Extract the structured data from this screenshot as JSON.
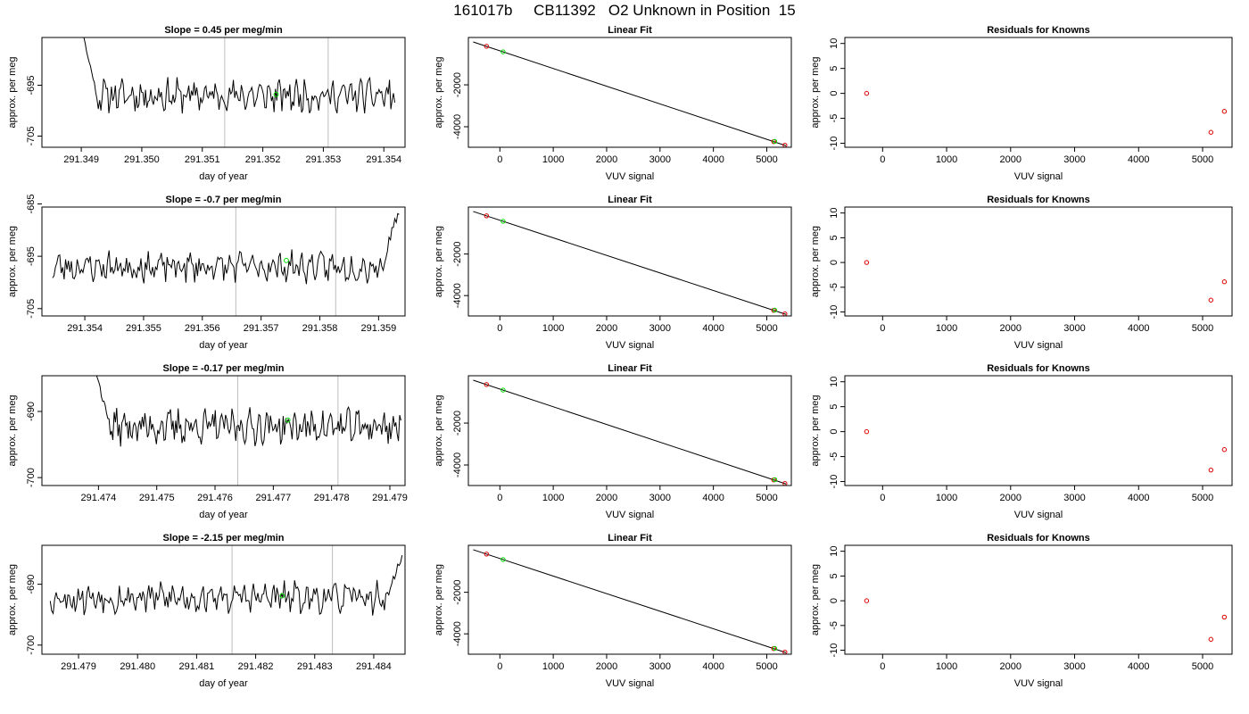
{
  "title": "161017b     CB11392   O2 Unknown in Position  15",
  "colors": {
    "axis": "#000000",
    "series": "#000000",
    "vline": "#bebebe",
    "green": "#00dd00",
    "red": "#dd0000"
  },
  "chart_data": [
    {
      "type": "line",
      "row": 0,
      "col": 0,
      "title": "Slope =  0.45  per meg/min",
      "xlabel": "day of year",
      "ylabel": "approx. per meg",
      "xlim": [
        291.34835,
        291.35435
      ],
      "ylim": [
        -707.2,
        -685.6
      ],
      "xticks": [
        291.349,
        291.35,
        291.351,
        291.352,
        291.353,
        291.354
      ],
      "xtick_labels": [
        "291.349",
        "291.350",
        "291.351",
        "291.352",
        "291.353",
        "291.354"
      ],
      "yticks": [
        -705,
        -695
      ],
      "ytick_labels": [
        "-705",
        "-695"
      ],
      "vlines": [
        291.35137,
        291.35308
      ],
      "x_start": 291.349,
      "x_end": 291.35418,
      "lead": [
        -684,
        -688,
        -692.5
      ],
      "trail": [],
      "base": -697,
      "amp": 2.2,
      "seed": 11,
      "marker": {
        "x": 291.35222,
        "y": -696.8
      }
    },
    {
      "type": "line",
      "row": 1,
      "col": 0,
      "title": "Slope =  -0.7  per meg/min",
      "xlabel": "day of year",
      "ylabel": "approx. per meg",
      "xlim": [
        291.35327,
        291.35945
      ],
      "ylim": [
        -706.4,
        -685.6
      ],
      "xticks": [
        291.354,
        291.355,
        291.356,
        291.357,
        291.358,
        291.359
      ],
      "xtick_labels": [
        "291.354",
        "291.355",
        "291.356",
        "291.357",
        "291.358",
        "291.359"
      ],
      "yticks": [
        -705,
        -695,
        -685
      ],
      "ytick_labels": [
        "-705",
        "-695",
        "-685"
      ],
      "vlines": [
        291.35657,
        291.35827
      ],
      "x_start": 291.35345,
      "x_end": 291.35935,
      "lead": [],
      "trail": [
        -692,
        -688.5,
        -685.8
      ],
      "base": -697,
      "amp": 2.0,
      "seed": 23,
      "marker": {
        "x": 291.35743,
        "y": -695.8
      }
    },
    {
      "type": "line",
      "row": 2,
      "col": 0,
      "title": "Slope =  -0.17  per meg/min",
      "xlabel": "day of year",
      "ylabel": "approx. per meg",
      "xlim": [
        291.47303,
        291.47926
      ],
      "ylim": [
        -701.2,
        -684.6
      ],
      "xticks": [
        291.474,
        291.475,
        291.476,
        291.477,
        291.478,
        291.479
      ],
      "xtick_labels": [
        "291.474",
        "291.475",
        "291.476",
        "291.477",
        "291.478",
        "291.479"
      ],
      "yticks": [
        -700,
        -690
      ],
      "ytick_labels": [
        "-700",
        "-690"
      ],
      "vlines": [
        291.47639,
        291.47811
      ],
      "x_start": 291.47394,
      "x_end": 291.47919,
      "lead": [
        -683,
        -686.5,
        -689.5
      ],
      "trail": [],
      "base": -692.3,
      "amp": 1.8,
      "seed": 37,
      "marker": {
        "x": 291.47725,
        "y": -691.3
      }
    },
    {
      "type": "line",
      "row": 3,
      "col": 0,
      "title": "Slope =  -2.15  per meg/min",
      "xlabel": "day of year",
      "ylabel": "approx. per meg",
      "xlim": [
        291.47838,
        291.48453
      ],
      "ylim": [
        -701.5,
        -683.6
      ],
      "xticks": [
        291.479,
        291.48,
        291.481,
        291.482,
        291.483,
        291.484
      ],
      "xtick_labels": [
        "291.479",
        "291.480",
        "291.481",
        "291.482",
        "291.483",
        "291.484"
      ],
      "yticks": [
        -700,
        -690
      ],
      "ytick_labels": [
        "-700",
        "-690"
      ],
      "vlines": [
        291.4816,
        291.4833
      ],
      "x_start": 291.47852,
      "x_end": 291.48448,
      "lead": [],
      "trail": [
        -690,
        -687,
        -684.5
      ],
      "base": -692.2,
      "amp": 1.8,
      "seed": 53,
      "marker": {
        "x": 291.48245,
        "y": -691.9
      }
    },
    {
      "type": "line",
      "row": 0,
      "col": 1,
      "title": "Linear Fit",
      "xlabel": "VUV signal",
      "ylabel": "approx. per meg",
      "xlim": [
        -590,
        5460
      ],
      "ylim": [
        -4980,
        260
      ],
      "xticks": [
        0,
        1000,
        2000,
        3000,
        4000,
        5000
      ],
      "xtick_labels": [
        "0",
        "1000",
        "2000",
        "3000",
        "4000",
        "5000"
      ],
      "yticks": [
        -4000,
        -2000
      ],
      "ytick_labels": [
        "-4000",
        "-2000"
      ],
      "line": {
        "x": [
          -500,
          5360
        ],
        "y": [
          48,
          -4905
        ]
      },
      "points_red": {
        "x": [
          -250,
          5130,
          5340
        ],
        "y": [
          -160,
          -4710,
          -4880
        ]
      },
      "points_green": {
        "x": [
          60,
          5150
        ],
        "y": [
          -425,
          -4700
        ]
      }
    },
    {
      "type": "line",
      "row": 1,
      "col": 1,
      "title": "Linear Fit",
      "xlabel": "VUV signal",
      "ylabel": "approx. per meg",
      "xlim": [
        -590,
        5460
      ],
      "ylim": [
        -4980,
        260
      ],
      "xticks": [
        0,
        1000,
        2000,
        3000,
        4000,
        5000
      ],
      "xtick_labels": [
        "0",
        "1000",
        "2000",
        "3000",
        "4000",
        "5000"
      ],
      "yticks": [
        -4000,
        -2000
      ],
      "ytick_labels": [
        "-4000",
        "-2000"
      ],
      "line": {
        "x": [
          -500,
          5360
        ],
        "y": [
          48,
          -4905
        ]
      },
      "points_red": {
        "x": [
          -250,
          5130,
          5340
        ],
        "y": [
          -160,
          -4710,
          -4880
        ]
      },
      "points_green": {
        "x": [
          60,
          5150
        ],
        "y": [
          -425,
          -4700
        ]
      }
    },
    {
      "type": "line",
      "row": 2,
      "col": 1,
      "title": "Linear Fit",
      "xlabel": "VUV signal",
      "ylabel": "approx. per meg",
      "xlim": [
        -590,
        5460
      ],
      "ylim": [
        -4980,
        260
      ],
      "xticks": [
        0,
        1000,
        2000,
        3000,
        4000,
        5000
      ],
      "xtick_labels": [
        "0",
        "1000",
        "2000",
        "3000",
        "4000",
        "5000"
      ],
      "yticks": [
        -4000,
        -2000
      ],
      "ytick_labels": [
        "-4000",
        "-2000"
      ],
      "line": {
        "x": [
          -500,
          5360
        ],
        "y": [
          48,
          -4905
        ]
      },
      "points_red": {
        "x": [
          -250,
          5130,
          5340
        ],
        "y": [
          -160,
          -4710,
          -4880
        ]
      },
      "points_green": {
        "x": [
          60,
          5150
        ],
        "y": [
          -425,
          -4700
        ]
      }
    },
    {
      "type": "line",
      "row": 3,
      "col": 1,
      "title": "Linear Fit",
      "xlabel": "VUV signal",
      "ylabel": "approx. per meg",
      "xlim": [
        -590,
        5460
      ],
      "ylim": [
        -4980,
        260
      ],
      "xticks": [
        0,
        1000,
        2000,
        3000,
        4000,
        5000
      ],
      "xtick_labels": [
        "0",
        "1000",
        "2000",
        "3000",
        "4000",
        "5000"
      ],
      "yticks": [
        -4000,
        -2000
      ],
      "ytick_labels": [
        "-4000",
        "-2000"
      ],
      "line": {
        "x": [
          -500,
          5360
        ],
        "y": [
          48,
          -4905
        ]
      },
      "points_red": {
        "x": [
          -250,
          5130,
          5340
        ],
        "y": [
          -160,
          -4710,
          -4880
        ]
      },
      "points_green": {
        "x": [
          60,
          5150
        ],
        "y": [
          -425,
          -4700
        ]
      }
    },
    {
      "type": "scatter",
      "row": 0,
      "col": 2,
      "title": "Residuals for Knowns",
      "xlabel": "VUV signal",
      "ylabel": "approx. per meg",
      "xlim": [
        -590,
        5460
      ],
      "ylim": [
        -10.8,
        11.2
      ],
      "xticks": [
        0,
        1000,
        2000,
        3000,
        4000,
        5000
      ],
      "xtick_labels": [
        "0",
        "1000",
        "2000",
        "3000",
        "4000",
        "5000"
      ],
      "yticks": [
        -10,
        -5,
        0,
        5,
        10
      ],
      "ytick_labels": [
        "-10",
        "-5",
        "0",
        "5",
        "10"
      ],
      "points_red": {
        "x": [
          -250,
          5130,
          5340
        ],
        "y": [
          0,
          -7.8,
          -3.6
        ]
      }
    },
    {
      "type": "scatter",
      "row": 1,
      "col": 2,
      "title": "Residuals for Knowns",
      "xlabel": "VUV signal",
      "ylabel": "approx. per meg",
      "xlim": [
        -590,
        5460
      ],
      "ylim": [
        -10.8,
        11.2
      ],
      "xticks": [
        0,
        1000,
        2000,
        3000,
        4000,
        5000
      ],
      "xtick_labels": [
        "0",
        "1000",
        "2000",
        "3000",
        "4000",
        "5000"
      ],
      "yticks": [
        -10,
        -5,
        0,
        5,
        10
      ],
      "ytick_labels": [
        "-10",
        "-5",
        "0",
        "5",
        "10"
      ],
      "points_red": {
        "x": [
          -250,
          5130,
          5340
        ],
        "y": [
          0,
          -7.6,
          -3.9
        ]
      }
    },
    {
      "type": "scatter",
      "row": 2,
      "col": 2,
      "title": "Residuals for Knowns",
      "xlabel": "VUV signal",
      "ylabel": "approx. per meg",
      "xlim": [
        -590,
        5460
      ],
      "ylim": [
        -10.8,
        11.2
      ],
      "xticks": [
        0,
        1000,
        2000,
        3000,
        4000,
        5000
      ],
      "xtick_labels": [
        "0",
        "1000",
        "2000",
        "3000",
        "4000",
        "5000"
      ],
      "yticks": [
        -10,
        -5,
        0,
        5,
        10
      ],
      "ytick_labels": [
        "-10",
        "-5",
        "0",
        "5",
        "10"
      ],
      "points_red": {
        "x": [
          -250,
          5130,
          5340
        ],
        "y": [
          0,
          -7.7,
          -3.6
        ]
      }
    },
    {
      "type": "scatter",
      "row": 3,
      "col": 2,
      "title": "Residuals for Knowns",
      "xlabel": "VUV signal",
      "ylabel": "approx. per meg",
      "xlim": [
        -590,
        5460
      ],
      "ylim": [
        -10.8,
        11.2
      ],
      "xticks": [
        0,
        1000,
        2000,
        3000,
        4000,
        5000
      ],
      "xtick_labels": [
        "0",
        "1000",
        "2000",
        "3000",
        "4000",
        "5000"
      ],
      "yticks": [
        -10,
        -5,
        0,
        5,
        10
      ],
      "ytick_labels": [
        "-10",
        "-5",
        "0",
        "5",
        "10"
      ],
      "points_red": {
        "x": [
          -250,
          5130,
          5340
        ],
        "y": [
          0,
          -7.8,
          -3.3
        ]
      }
    }
  ]
}
